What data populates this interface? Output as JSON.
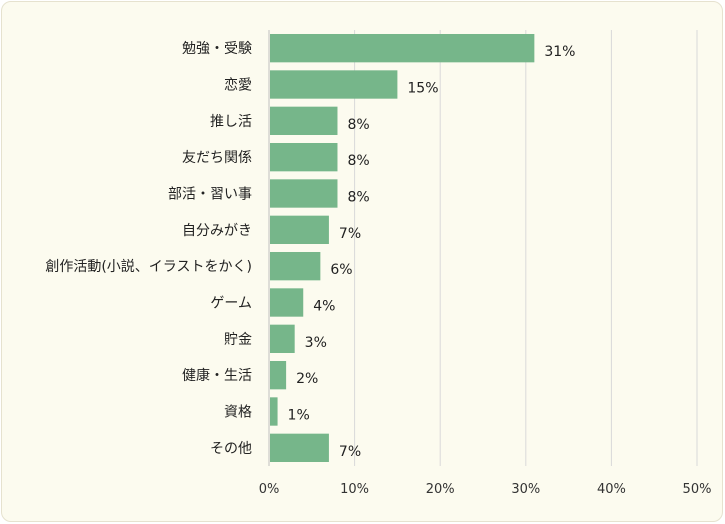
{
  "chart_data": {
    "type": "bar",
    "orientation": "horizontal",
    "categories": [
      "勉強・受験",
      "恋愛",
      "推し活",
      "友だち関係",
      "部活・習い事",
      "自分みがき",
      "創作活動(小説、イラストをかく)",
      "ゲーム",
      "貯金",
      "健康・生活",
      "資格",
      "その他"
    ],
    "values": [
      31,
      15,
      8,
      8,
      8,
      7,
      6,
      4,
      3,
      2,
      1,
      7
    ],
    "data_labels": [
      "31%",
      "15%",
      "8%",
      "8%",
      "8%",
      "7%",
      "6%",
      "4%",
      "3%",
      "2%",
      "1%",
      "7%"
    ],
    "xlim": [
      0,
      50
    ],
    "xticks": [
      "0%",
      "10%",
      "20%",
      "30%",
      "40%",
      "50%"
    ],
    "grid": "vertical",
    "bar_color": "#76b68a",
    "background_color": "#fcfbef"
  }
}
